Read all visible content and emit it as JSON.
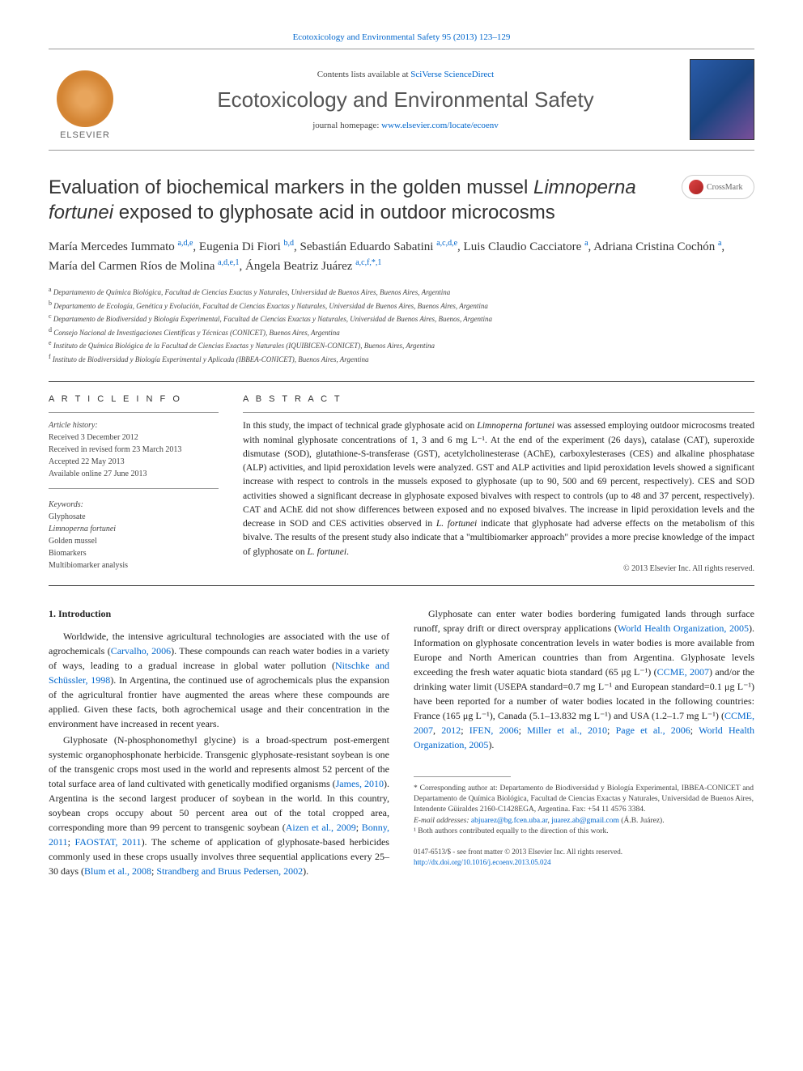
{
  "top_citation": "Ecotoxicology and Environmental Safety 95 (2013) 123–129",
  "header": {
    "contents_label": "Contents lists available at ",
    "contents_link": "SciVerse ScienceDirect",
    "journal_name": "Ecotoxicology and Environmental Safety",
    "homepage_label": "journal homepage: ",
    "homepage_link": "www.elsevier.com/locate/ecoenv",
    "publisher_name": "ELSEVIER"
  },
  "crossmark_label": "CrossMark",
  "title_pre": "Evaluation of biochemical markers in the golden mussel ",
  "title_italic": "Limnoperna fortunei",
  "title_post": " exposed to glyphosate acid in outdoor microcosms",
  "authors_html": "María Mercedes Iummato <sup>a,d,e</sup>, Eugenia Di Fiori <sup>b,d</sup>, Sebastián Eduardo Sabatini <sup>a,c,d,e</sup>, Luis Claudio Cacciatore <sup>a</sup>, Adriana Cristina Cochón <sup>a</sup>, María del Carmen Ríos de Molina <sup>a,d,e,1</sup>, Ángela Beatriz Juárez <sup>a,c,f,*,1</sup>",
  "affiliations": [
    {
      "sup": "a",
      "text": "Departamento de Química Biológica, Facultad de Ciencias Exactas y Naturales, Universidad de Buenos Aires, Buenos Aires, Argentina"
    },
    {
      "sup": "b",
      "text": "Departamento de Ecología, Genética y Evolución, Facultad de Ciencias Exactas y Naturales, Universidad de Buenos Aires, Buenos Aires, Argentina"
    },
    {
      "sup": "c",
      "text": "Departamento de Biodiversidad y Biología Experimental, Facultad de Ciencias Exactas y Naturales, Universidad de Buenos Aires, Buenos, Argentina"
    },
    {
      "sup": "d",
      "text": "Consejo Nacional de Investigaciones Científicas y Técnicas (CONICET), Buenos Aires, Argentina"
    },
    {
      "sup": "e",
      "text": "Instituto de Química Biológica de la Facultad de Ciencias Exactas y Naturales (IQUIBICEN-CONICET), Buenos Aires, Argentina"
    },
    {
      "sup": "f",
      "text": "Instituto de Biodiversidad y Biología Experimental y Aplicada (IBBEA-CONICET), Buenos Aires, Argentina"
    }
  ],
  "article_info_head": "A R T I C L E  I N F O",
  "abstract_head": "A B S T R A C T",
  "history": {
    "label": "Article history:",
    "received": "Received 3 December 2012",
    "revised": "Received in revised form 23 March 2013",
    "accepted": "Accepted 22 May 2013",
    "online": "Available online 27 June 2013"
  },
  "keywords": {
    "label": "Keywords:",
    "items": [
      "Glyphosate",
      "Limnoperna fortunei",
      "Golden mussel",
      "Biomarkers",
      "Multibiomarker analysis"
    ]
  },
  "abstract_text": "In this study, the impact of technical grade glyphosate acid on <em>Limnoperna fortunei</em> was assessed employing outdoor microcosms treated with nominal glyphosate concentrations of 1, 3 and 6 mg L⁻¹. At the end of the experiment (26 days), catalase (CAT), superoxide dismutase (SOD), glutathione-S-transferase (GST), acetylcholinesterase (AChE), carboxylesterases (CES) and alkaline phosphatase (ALP) activities, and lipid peroxidation levels were analyzed. GST and ALP activities and lipid peroxidation levels showed a significant increase with respect to controls in the mussels exposed to glyphosate (up to 90, 500 and 69 percent, respectively). CES and SOD activities showed a significant decrease in glyphosate exposed bivalves with respect to controls (up to 48 and 37 percent, respectively). CAT and AChE did not show differences between exposed and no exposed bivalves. The increase in lipid peroxidation levels and the decrease in SOD and CES activities observed in <em>L. fortunei</em> indicate that glyphosate had adverse effects on the metabolism of this bivalve. The results of the present study also indicate that a \"multibiomarker approach\" provides a more precise knowledge of the impact of glyphosate on <em>L. fortunei</em>.",
  "abstract_copyright": "© 2013 Elsevier Inc. All rights reserved.",
  "intro_head": "1.  Introduction",
  "intro_paragraphs": [
    "Worldwide, the intensive agricultural technologies are associated with the use of agrochemicals (<a>Carvalho, 2006</a>). These compounds can reach water bodies in a variety of ways, leading to a gradual increase in global water pollution (<a>Nitschke and Schüssler, 1998</a>). In Argentina, the continued use of agrochemicals plus the expansion of the agricultural frontier have augmented the areas where these compounds are applied. Given these facts, both agrochemical usage and their concentration in the environment have increased in recent years.",
    "Glyphosate (N-phosphonomethyl glycine) is a broad-spectrum post-emergent systemic organophosphonate herbicide. Transgenic glyphosate-resistant soybean is one of the transgenic crops most used in the world and represents almost 52 percent of the total surface area of land cultivated with genetically modified organisms (<a>James, 2010</a>). Argentina is the second largest producer of soybean in the world. In this country, soybean crops occupy about 50 percent area out of the total cropped area, corresponding more than 99 percent to transgenic soybean (<a>Aizen et al., 2009</a>; <a>Bonny, 2011</a>; <a>FAOSTAT, 2011</a>). The scheme of application of glyphosate-based herbicides commonly used in these crops usually involves three sequential applications every 25–30 days (<a>Blum et al., 2008</a>; <a>Strandberg and Bruus Pedersen, 2002</a>).",
    "Glyphosate can enter water bodies bordering fumigated lands through surface runoff, spray drift or direct overspray applications (<a>World Health Organization, 2005</a>). Information on glyphosate concentration levels in water bodies is more available from Europe and North American countries than from Argentina. Glyphosate levels exceeding the fresh water aquatic biota standard (65 μg L⁻¹) (<a>CCME, 2007</a>) and/or the drinking water limit (USEPA standard=0.7 mg L⁻¹ and European standard=0.1 μg L⁻¹) have been reported for a number of water bodies located in the following countries: France (165 μg L⁻¹), Canada (5.1–13.832 mg L⁻¹) and USA (1.2–1.7 mg L⁻¹) (<a>CCME, 2007</a>, <a>2012</a>; <a>IFEN, 2006</a>; <a>Miller et al., 2010</a>; <a>Page et al., 2006</a>; <a>World Health Organization, 2005</a>)."
  ],
  "footnotes": {
    "corresponding": "* Corresponding author at: Departamento de Biodiversidad y Biología Experimental, IBBEA-CONICET and Departamento de Química Biológica, Facultad de Ciencias Exactas y Naturales, Universidad de Buenos Aires, Intendente Güiraldes 2160-C1428EGA, Argentina. Fax: +54 11 4576 3384.",
    "email_label": "E-mail addresses: ",
    "email1": "abjuarez@bg.fcen.uba.ar",
    "email2": "juarez.ab@gmail.com",
    "email_name": "(Á.B. Juárez).",
    "note1": "¹ Both authors contributed equally to the direction of this work."
  },
  "footer": {
    "issn": "0147-6513/$ - see front matter © 2013 Elsevier Inc. All rights reserved.",
    "doi": "http://dx.doi.org/10.1016/j.ecoenv.2013.05.024"
  },
  "colors": {
    "link": "#0066cc",
    "text": "#222222",
    "muted": "#444444",
    "border": "#999999"
  }
}
